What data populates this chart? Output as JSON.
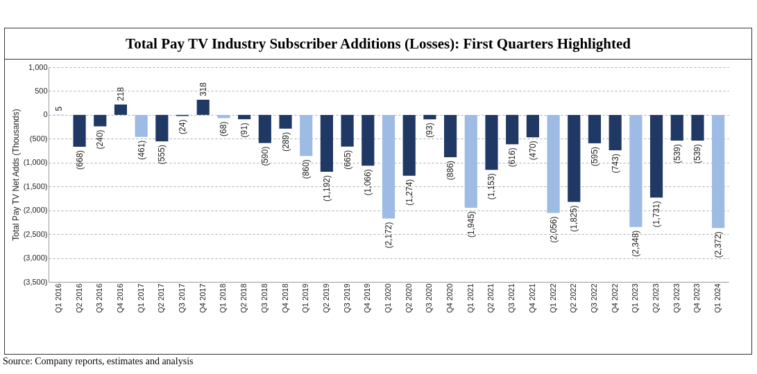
{
  "chart_data": {
    "type": "bar",
    "title": "Total Pay TV Industry Subscriber Additions (Losses): First Quarters Highlighted",
    "ylabel": "Total Pay TV Net Adds (Thousands)",
    "annotations": [
      "Source: Company reports, estimates and analysis"
    ],
    "categories": [
      "Q1 2016",
      "Q2 2016",
      "Q3 2016",
      "Q4 2016",
      "Q1 2017",
      "Q2 2017",
      "Q3 2017",
      "Q4 2017",
      "Q1 2018",
      "Q2 2018",
      "Q3 2018",
      "Q4 2018",
      "Q1 2019",
      "Q2 2019",
      "Q3 2019",
      "Q4 2019",
      "Q1 2020",
      "Q2 2020",
      "Q3 2020",
      "Q4 2020",
      "Q1 2021",
      "Q2 2021",
      "Q3 2021",
      "Q4 2021",
      "Q1 2022",
      "Q2 2022",
      "Q3 2022",
      "Q4 2022",
      "Q1 2023",
      "Q2 2023",
      "Q3 2023",
      "Q4 2023",
      "Q1 2024"
    ],
    "values": [
      5,
      -668,
      -240,
      218,
      -461,
      -555,
      -24,
      318,
      -68,
      -91,
      -590,
      -289,
      -860,
      -1192,
      -665,
      -1066,
      -2172,
      -1274,
      -93,
      -886,
      -1945,
      -1153,
      -616,
      -470,
      -2056,
      -1825,
      -595,
      -743,
      -2348,
      -1731,
      -539,
      -539,
      -2372
    ],
    "value_labels": [
      "5",
      "(668)",
      "(240)",
      "218",
      "(461)",
      "(555)",
      "(24)",
      "318",
      "(68)",
      "(91)",
      "(590)",
      "(289)",
      "(860)",
      "(1,192)",
      "(665)",
      "(1,066)",
      "(2,172)",
      "(1,274)",
      "(93)",
      "(886)",
      "(1,945)",
      "(1,153)",
      "(616)",
      "(470)",
      "(2,056)",
      "(1,825)",
      "(595)",
      "(743)",
      "(2,348)",
      "(1,731)",
      "(539)",
      "(539)",
      "(2,372)"
    ],
    "colors": [
      "#9dbbe3",
      "#1f3864",
      "#1f3864",
      "#1f3864",
      "#9dbbe3",
      "#1f3864",
      "#1f3864",
      "#1f3864",
      "#9dbbe3",
      "#1f3864",
      "#1f3864",
      "#1f3864",
      "#9dbbe3",
      "#1f3864",
      "#1f3864",
      "#1f3864",
      "#9dbbe3",
      "#1f3864",
      "#1f3864",
      "#1f3864",
      "#9dbbe3",
      "#1f3864",
      "#1f3864",
      "#1f3864",
      "#9dbbe3",
      "#1f3864",
      "#1f3864",
      "#1f3864",
      "#9dbbe3",
      "#1f3864",
      "#1f3864",
      "#1f3864",
      "#9dbbe3"
    ],
    "ylim": [
      -3500,
      1000
    ],
    "yticks": [
      {
        "value": -3500,
        "label": "(3,500)"
      },
      {
        "value": -3000,
        "label": "(3,000)"
      },
      {
        "value": -2500,
        "label": "(2,500)"
      },
      {
        "value": -2000,
        "label": "(2,000)"
      },
      {
        "value": -1500,
        "label": "(1,500)"
      },
      {
        "value": -1000,
        "label": "(1,000)"
      },
      {
        "value": -500,
        "label": "(500)"
      },
      {
        "value": 0,
        "label": "0"
      },
      {
        "value": 500,
        "label": "500"
      },
      {
        "value": 1000,
        "label": "1,000"
      }
    ],
    "grid": "y"
  }
}
